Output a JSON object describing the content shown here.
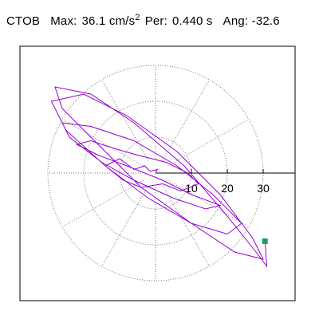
{
  "header": {
    "station": "CTOB",
    "max_label": "Max:",
    "max_value": "36.1",
    "max_unit": "cm/s",
    "max_unit_exp": "2",
    "per_label": "Per:",
    "per_value": "0.440 s",
    "ang_label": "Ang:",
    "ang_value": "-32.6"
  },
  "chart_data": {
    "type": "scatter",
    "title": "CTOB  Max: 36.1 cm/s2  Per: 0.440 s  Ang: -32.6",
    "xlabel": "",
    "ylabel": "",
    "rings": [
      10,
      20,
      30
    ],
    "ring_labels": [
      "10",
      "20",
      "30"
    ],
    "radial_spokes_deg": [
      0,
      30,
      60,
      90,
      120,
      150,
      180,
      210,
      240,
      270,
      300,
      330
    ],
    "grid": true,
    "trace_color": "#9400d3",
    "end_marker_color": "#1e9a78",
    "trace": {
      "x": [
        0,
        0.5,
        -1.5,
        -3,
        -6,
        -10,
        -14,
        -9,
        -4,
        2,
        7,
        12,
        9,
        3,
        -5,
        -12,
        -18,
        -22,
        -16,
        -8,
        2,
        10,
        18,
        14,
        5,
        -6,
        -15,
        -24,
        -26,
        -18,
        -6,
        6,
        16,
        24,
        20,
        10,
        -2,
        -14,
        -25,
        -29,
        -20,
        -8,
        6,
        18,
        27,
        30,
        22,
        10,
        -4,
        -16,
        -26,
        -28,
        -18,
        -6,
        8,
        20,
        28,
        31,
        30.5
      ],
      "y": [
        0,
        1,
        0.5,
        2,
        1,
        4,
        2,
        -2,
        -4,
        -3,
        -5,
        -3,
        0,
        3,
        5,
        7,
        9,
        8,
        5,
        2,
        -2,
        -6,
        -9,
        -10,
        -7,
        -2,
        3,
        10,
        14,
        13,
        9,
        2,
        -6,
        -14,
        -17,
        -14,
        -7,
        2,
        12,
        20,
        22,
        16,
        6,
        -6,
        -18,
        -24,
        -22,
        -14,
        -4,
        8,
        18,
        24,
        22,
        14,
        2,
        -12,
        -22,
        -26,
        -19
      ]
    },
    "end_point": {
      "x": 30.5,
      "y": -19
    }
  }
}
